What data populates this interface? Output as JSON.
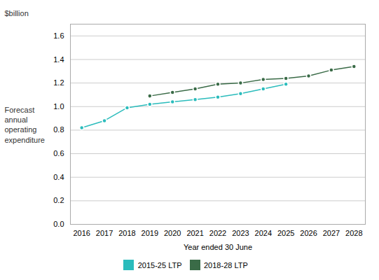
{
  "chart_data": {
    "type": "line",
    "xlabel": "Year ended 30 June",
    "ylabel": "Forecast\nannual\noperating\nexpenditure",
    "annotations": [
      "$billion"
    ],
    "x": [
      2016,
      2017,
      2018,
      2019,
      2020,
      2021,
      2022,
      2023,
      2024,
      2025,
      2026,
      2027,
      2028
    ],
    "series": [
      {
        "name": "2015-25 LTP",
        "color": "#2BBCBC",
        "marker": "circle",
        "values": [
          0.82,
          0.88,
          0.99,
          1.02,
          1.04,
          1.06,
          1.08,
          1.11,
          1.15,
          1.19,
          null,
          null,
          null
        ]
      },
      {
        "name": "2018-28 LTP",
        "color": "#3A6B47",
        "marker": "circle",
        "values": [
          null,
          null,
          null,
          1.09,
          1.12,
          1.15,
          1.19,
          1.2,
          1.23,
          1.24,
          1.26,
          1.31,
          1.34
        ]
      }
    ],
    "xlim": [
      2015.5,
      2028.5
    ],
    "xticks": [
      2016,
      2017,
      2018,
      2019,
      2020,
      2021,
      2022,
      2023,
      2024,
      2025,
      2026,
      2027,
      2028
    ],
    "ylim": [
      0.0,
      1.7
    ],
    "yticks": [
      {
        "value": 0.0,
        "label": "0.0"
      },
      0.2,
      0.4,
      0.6,
      0.8,
      {
        "value": 1.0,
        "label": "1.0"
      },
      1.2,
      1.4,
      1.6
    ],
    "grid": true,
    "legend": "bottom",
    "marker": "circle"
  }
}
